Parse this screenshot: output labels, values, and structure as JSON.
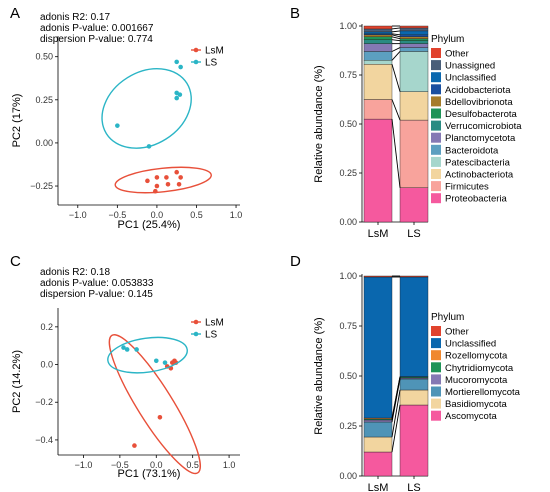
{
  "chart_data": [
    {
      "panel": "A",
      "type": "scatter",
      "stats": [
        "adonis R2: 0.17",
        "adonis P-value: 0.001667",
        "dispersion P-value: 0.774"
      ],
      "xlabel": "PC1 (25.4%)",
      "ylabel": "PC2 (17%)",
      "xlim": [
        -1.25,
        1.05
      ],
      "ylim": [
        -0.36,
        0.62
      ],
      "xticks": [
        -1.0,
        -0.5,
        0.0,
        0.5,
        1.0
      ],
      "xticklabels": [
        "−1.0",
        "−0.5",
        "0.0",
        "0.5",
        "1.0"
      ],
      "yticks": [
        -0.25,
        0.0,
        0.25,
        0.5
      ],
      "yticklabels": [
        "−0.25",
        "0.00",
        "0.25",
        "0.50"
      ],
      "series": [
        {
          "name": "LsM",
          "color": "#e8503a",
          "points": [
            [
              -0.12,
              -0.22
            ],
            [
              0.0,
              -0.2
            ],
            [
              0.0,
              -0.25
            ],
            [
              0.12,
              -0.2
            ],
            [
              0.25,
              -0.17
            ],
            [
              0.3,
              -0.2
            ],
            [
              0.14,
              -0.24
            ],
            [
              -0.02,
              -0.28
            ],
            [
              0.28,
              -0.24
            ]
          ],
          "ellipse": {
            "cx": 0.08,
            "cy": -0.215,
            "rx": 0.61,
            "ry": 0.068,
            "angle": 6
          }
        },
        {
          "name": "LS",
          "color": "#2bb5c6",
          "points": [
            [
              0.25,
              0.47
            ],
            [
              0.3,
              0.44
            ],
            [
              0.25,
              0.29
            ],
            [
              0.25,
              0.26
            ],
            [
              0.29,
              0.28
            ],
            [
              -0.5,
              0.1
            ],
            [
              -0.1,
              -0.02
            ]
          ],
          "ellipse": {
            "cx": -0.13,
            "cy": 0.2,
            "rx": 0.6,
            "ry": 0.21,
            "angle": 32
          }
        }
      ],
      "legend_position": "top-right"
    },
    {
      "panel": "B",
      "type": "bar",
      "stacked": true,
      "ylabel": "Relative abundance (%)",
      "ylim": [
        0,
        1
      ],
      "yticks": [
        0,
        0.25,
        0.5,
        0.75,
        1.0
      ],
      "yticklabels": [
        "0.00",
        "0.25",
        "0.50",
        "0.75",
        "1.00"
      ],
      "categories": [
        "LsM",
        "LS"
      ],
      "legend_title": "Phylum",
      "series": [
        {
          "name": "Proteobacteria",
          "color": "#f5599e",
          "values": [
            0.525,
            0.175
          ]
        },
        {
          "name": "Firmicutes",
          "color": "#f8a39c",
          "values": [
            0.1,
            0.345
          ]
        },
        {
          "name": "Actinobacteriota",
          "color": "#f2d59f",
          "values": [
            0.18,
            0.145
          ]
        },
        {
          "name": "Patescibacteria",
          "color": "#a6d6cc",
          "values": [
            0.02,
            0.205
          ]
        },
        {
          "name": "Bacteroidota",
          "color": "#5c9fc0",
          "values": [
            0.045,
            0.02
          ]
        },
        {
          "name": "Planctomycetota",
          "color": "#8579b4",
          "values": [
            0.04,
            0.02
          ]
        },
        {
          "name": "Verrucomicrobiota",
          "color": "#2a8b82",
          "values": [
            0.02,
            0.015
          ]
        },
        {
          "name": "Desulfobacterota",
          "color": "#1e9357",
          "values": [
            0.015,
            0.01
          ]
        },
        {
          "name": "Bdellovibrionota",
          "color": "#a57c2a",
          "values": [
            0.01,
            0.01
          ]
        },
        {
          "name": "Acidobacteriota",
          "color": "#1a4fa0",
          "values": [
            0.005,
            0.01
          ]
        },
        {
          "name": "Unclassified",
          "color": "#0a67ae",
          "values": [
            0.01,
            0.02
          ]
        },
        {
          "name": "Unassigned",
          "color": "#495e79",
          "values": [
            0.015,
            0.015
          ]
        },
        {
          "name": "Other",
          "color": "#e1432e",
          "values": [
            0.015,
            0.01
          ]
        }
      ],
      "legend_position": "right"
    },
    {
      "panel": "C",
      "type": "scatter",
      "stats": [
        "adonis R2: 0.18",
        "adonis P-value: 0.053833",
        "dispersion P-value: 0.145"
      ],
      "xlabel": "PC1 (73.1%)",
      "ylabel": "PC2 (14.2%)",
      "xlim": [
        -1.35,
        1.15
      ],
      "ylim": [
        -0.48,
        0.3
      ],
      "xticks": [
        -1.0,
        -0.5,
        0.0,
        0.5,
        1.0
      ],
      "xticklabels": [
        "−1.0",
        "−0.5",
        "0.0",
        "0.5",
        "1.0"
      ],
      "yticks": [
        -0.4,
        -0.2,
        0.0,
        0.2
      ],
      "yticklabels": [
        "−0.4",
        "−0.2",
        "0.0",
        "0.2"
      ],
      "series": [
        {
          "name": "LsM",
          "color": "#e8503a",
          "points": [
            [
              0.22,
              0.01
            ],
            [
              0.25,
              0.02
            ],
            [
              0.15,
              -0.01
            ],
            [
              0.2,
              -0.02
            ],
            [
              0.05,
              -0.28
            ],
            [
              -0.3,
              -0.43
            ],
            [
              0.27,
              0.01
            ]
          ],
          "ellipse": {
            "cx": -0.02,
            "cy": -0.21,
            "rx": 0.24,
            "ry": 0.43,
            "angle": 32
          }
        },
        {
          "name": "LS",
          "color": "#2bb5c6",
          "points": [
            [
              -0.45,
              0.09
            ],
            [
              -0.4,
              0.08
            ],
            [
              -0.27,
              0.08
            ],
            [
              0.0,
              0.02
            ],
            [
              0.12,
              0.01
            ]
          ],
          "ellipse": {
            "cx": -0.12,
            "cy": 0.05,
            "rx": 0.55,
            "ry": 0.09,
            "angle": 8
          }
        }
      ],
      "legend_position": "top-right"
    },
    {
      "panel": "D",
      "type": "bar",
      "stacked": true,
      "ylabel": "Relative abundance (%)",
      "ylim": [
        0,
        1
      ],
      "yticks": [
        0,
        0.25,
        0.5,
        0.75,
        1.0
      ],
      "yticklabels": [
        "0.00",
        "0.25",
        "0.50",
        "0.75",
        "1.00"
      ],
      "categories": [
        "LsM",
        "LS"
      ],
      "legend_title": "Phylum",
      "series": [
        {
          "name": "Ascomycota",
          "color": "#f5599e",
          "values": [
            0.12,
            0.355
          ]
        },
        {
          "name": "Basidiomycota",
          "color": "#f2d59f",
          "values": [
            0.075,
            0.075
          ]
        },
        {
          "name": "Mortierellomycota",
          "color": "#4f94b7",
          "values": [
            0.075,
            0.055
          ]
        },
        {
          "name": "Mucoromycota",
          "color": "#8579b4",
          "values": [
            0.01,
            0.005
          ]
        },
        {
          "name": "Chytridiomycota",
          "color": "#1e9357",
          "values": [
            0.005,
            0.005
          ]
        },
        {
          "name": "Rozellomycota",
          "color": "#f0882f",
          "values": [
            0.005,
            0.002
          ]
        },
        {
          "name": "Unclassified",
          "color": "#0a67ae",
          "values": [
            0.705,
            0.498
          ]
        },
        {
          "name": "Other",
          "color": "#e1432e",
          "values": [
            0.005,
            0.005
          ]
        }
      ],
      "legend_position": "right"
    }
  ],
  "panel_labels": [
    "A",
    "B",
    "C",
    "D"
  ]
}
